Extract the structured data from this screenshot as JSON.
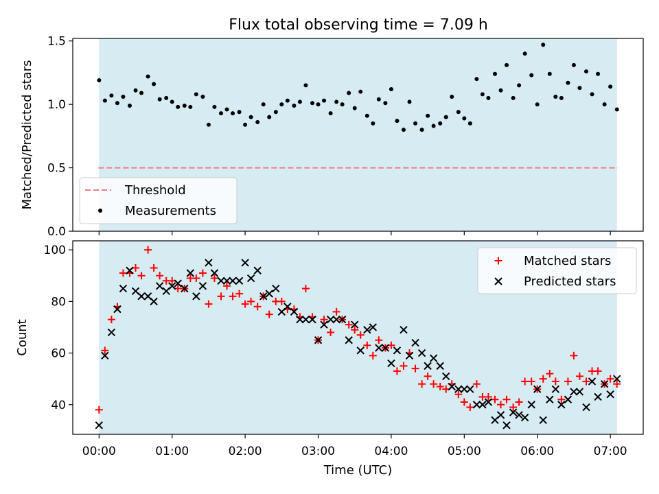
{
  "title": "Flux total observing time = 7.09 h",
  "colors": {
    "span_fill": "#add8e6",
    "threshold": "#f08080",
    "measurements": "#000000",
    "matched": "#ff0000",
    "predicted": "#000000"
  },
  "chart_data": [
    {
      "type": "scatter",
      "ylabel": "Matched/Predicted stars",
      "xlim": [
        -0.36,
        7.45
      ],
      "ylim": [
        0,
        1.52
      ],
      "xticks": [
        0,
        1,
        2,
        3,
        4,
        5,
        6,
        7
      ],
      "yticks": [
        0,
        0.5,
        1,
        1.5
      ],
      "ytick_labels": [
        "0.0",
        "0.5",
        "1.0",
        "1.5"
      ],
      "shaded_span": [
        0,
        7.09
      ],
      "threshold": {
        "name": "Threshold",
        "value": 0.5,
        "style": "dashed"
      },
      "legend": {
        "placement": "lower-left",
        "entries": [
          "Threshold",
          "Measurements"
        ]
      },
      "series": [
        {
          "name": "Measurements",
          "x": [
            0.0,
            0.08,
            0.17,
            0.25,
            0.33,
            0.42,
            0.5,
            0.58,
            0.67,
            0.75,
            0.83,
            0.92,
            1.0,
            1.08,
            1.17,
            1.25,
            1.33,
            1.42,
            1.5,
            1.58,
            1.67,
            1.75,
            1.83,
            1.92,
            2.0,
            2.08,
            2.17,
            2.25,
            2.33,
            2.42,
            2.5,
            2.58,
            2.67,
            2.75,
            2.83,
            2.92,
            3.0,
            3.08,
            3.17,
            3.25,
            3.33,
            3.42,
            3.5,
            3.58,
            3.67,
            3.75,
            3.83,
            3.92,
            4.0,
            4.08,
            4.17,
            4.25,
            4.33,
            4.42,
            4.5,
            4.58,
            4.67,
            4.75,
            4.83,
            4.92,
            5.0,
            5.08,
            5.17,
            5.25,
            5.33,
            5.42,
            5.5,
            5.58,
            5.67,
            5.75,
            5.83,
            5.92,
            6.0,
            6.08,
            6.17,
            6.25,
            6.33,
            6.42,
            6.5,
            6.58,
            6.67,
            6.75,
            6.83,
            6.92,
            7.0,
            7.09
          ],
          "y": [
            1.19,
            1.03,
            1.07,
            1.01,
            1.06,
            0.99,
            1.11,
            1.09,
            1.22,
            1.16,
            1.04,
            1.05,
            1.02,
            0.98,
            0.99,
            0.98,
            1.08,
            1.06,
            0.84,
            0.98,
            0.93,
            0.96,
            0.93,
            0.94,
            0.84,
            0.9,
            0.86,
            1.0,
            0.9,
            0.94,
            1.0,
            1.03,
            0.99,
            1.02,
            1.15,
            1.01,
            1.0,
            1.03,
            0.93,
            1.02,
            1.0,
            1.09,
            0.97,
            1.1,
            0.91,
            0.85,
            1.04,
            1.01,
            1.12,
            0.87,
            0.8,
            1.02,
            0.85,
            0.8,
            0.91,
            0.83,
            0.85,
            0.9,
            1.06,
            0.94,
            0.89,
            0.85,
            1.2,
            1.08,
            1.05,
            1.24,
            1.11,
            1.31,
            1.05,
            1.15,
            1.4,
            1.23,
            1.0,
            1.47,
            1.24,
            1.06,
            1.05,
            1.17,
            1.31,
            1.13,
            1.26,
            1.08,
            1.24,
            1.0,
            1.14,
            0.96
          ]
        }
      ]
    },
    {
      "type": "scatter",
      "xlabel": "Time (UTC)",
      "ylabel": "Count",
      "xlim": [
        -0.36,
        7.45
      ],
      "ylim": [
        28.5,
        103.5
      ],
      "xticks": [
        0,
        1,
        2,
        3,
        4,
        5,
        6,
        7
      ],
      "xtick_labels": [
        "00:00",
        "01:00",
        "02:00",
        "03:00",
        "04:00",
        "05:00",
        "06:00",
        "07:00"
      ],
      "yticks": [
        40,
        60,
        80,
        100
      ],
      "ytick_labels": [
        "40",
        "60",
        "80",
        "100"
      ],
      "shaded_span": [
        0,
        7.09
      ],
      "legend": {
        "placement": "top-right",
        "entries": [
          "Matched stars",
          "Predicted stars"
        ]
      },
      "series": [
        {
          "name": "Matched stars",
          "marker": "+",
          "x": [
            0.0,
            0.08,
            0.17,
            0.25,
            0.33,
            0.42,
            0.5,
            0.58,
            0.67,
            0.75,
            0.83,
            0.92,
            1.0,
            1.08,
            1.17,
            1.25,
            1.33,
            1.42,
            1.5,
            1.58,
            1.67,
            1.75,
            1.83,
            1.92,
            2.0,
            2.08,
            2.17,
            2.25,
            2.33,
            2.42,
            2.5,
            2.58,
            2.67,
            2.75,
            2.83,
            2.92,
            3.0,
            3.08,
            3.17,
            3.25,
            3.33,
            3.42,
            3.5,
            3.58,
            3.67,
            3.75,
            3.83,
            3.92,
            4.0,
            4.08,
            4.17,
            4.25,
            4.33,
            4.42,
            4.5,
            4.58,
            4.67,
            4.75,
            4.83,
            4.92,
            5.0,
            5.08,
            5.17,
            5.25,
            5.33,
            5.42,
            5.5,
            5.58,
            5.67,
            5.75,
            5.83,
            5.92,
            6.0,
            6.08,
            6.17,
            6.25,
            6.33,
            6.42,
            6.5,
            6.58,
            6.67,
            6.75,
            6.83,
            6.92,
            7.0,
            7.09
          ],
          "y": [
            38,
            61,
            73,
            78,
            91,
            91,
            93,
            90,
            100,
            93,
            90,
            88,
            88,
            85,
            85,
            89,
            89,
            91,
            79,
            89,
            82,
            86,
            82,
            83,
            79,
            80,
            78,
            82,
            75,
            80,
            80,
            77,
            77,
            74,
            85,
            74,
            65,
            73,
            68,
            76,
            73,
            71,
            69,
            67,
            63,
            59,
            65,
            62,
            63,
            53,
            55,
            60,
            54,
            48,
            51,
            48,
            47,
            46,
            48,
            44,
            41,
            39,
            48,
            43,
            43,
            42,
            40,
            42,
            39,
            41,
            49,
            49,
            46,
            50,
            52,
            49,
            42,
            49,
            59,
            51,
            49,
            53,
            53,
            48,
            50,
            48
          ]
        },
        {
          "name": "Predicted stars",
          "marker": "x",
          "x": [
            0.0,
            0.08,
            0.17,
            0.25,
            0.33,
            0.42,
            0.5,
            0.58,
            0.67,
            0.75,
            0.83,
            0.92,
            1.0,
            1.08,
            1.17,
            1.25,
            1.33,
            1.42,
            1.5,
            1.58,
            1.67,
            1.75,
            1.83,
            1.92,
            2.0,
            2.08,
            2.17,
            2.25,
            2.33,
            2.42,
            2.5,
            2.58,
            2.67,
            2.75,
            2.83,
            2.92,
            3.0,
            3.08,
            3.17,
            3.25,
            3.33,
            3.42,
            3.5,
            3.58,
            3.67,
            3.75,
            3.83,
            3.92,
            4.0,
            4.08,
            4.17,
            4.25,
            4.33,
            4.42,
            4.5,
            4.58,
            4.67,
            4.75,
            4.83,
            4.92,
            5.0,
            5.08,
            5.17,
            5.25,
            5.33,
            5.42,
            5.5,
            5.58,
            5.67,
            5.75,
            5.83,
            5.92,
            6.0,
            6.08,
            6.17,
            6.25,
            6.33,
            6.42,
            6.5,
            6.58,
            6.67,
            6.75,
            6.83,
            6.92,
            7.0,
            7.09
          ],
          "y": [
            32,
            59,
            68,
            77,
            85,
            92,
            84,
            82,
            82,
            80,
            86,
            84,
            86,
            87,
            85,
            91,
            82,
            86,
            95,
            91,
            88,
            88,
            88,
            88,
            95,
            89,
            92,
            82,
            83,
            85,
            76,
            78,
            76,
            73,
            73,
            73,
            65,
            71,
            73,
            73,
            73,
            65,
            71,
            61,
            69,
            70,
            62,
            62,
            56,
            61,
            69,
            59,
            64,
            60,
            55,
            58,
            55,
            51,
            47,
            46,
            46,
            46,
            40,
            40,
            41,
            34,
            36,
            32,
            37,
            36,
            35,
            40,
            46,
            34,
            42,
            46,
            40,
            42,
            45,
            45,
            39,
            49,
            43,
            48,
            44,
            50
          ]
        }
      ]
    }
  ]
}
